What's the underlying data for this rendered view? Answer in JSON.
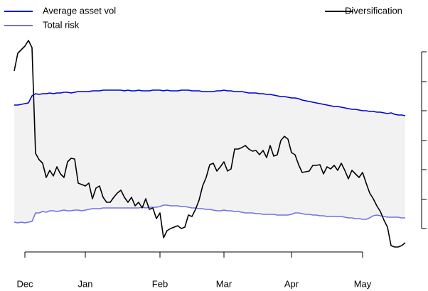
{
  "chart_data": {
    "type": "line",
    "categories": [
      null,
      null,
      null,
      "Dec",
      null,
      null,
      null,
      null,
      null,
      null,
      null,
      null,
      null,
      null,
      null,
      null,
      null,
      null,
      null,
      null,
      "Jan",
      null,
      null,
      null,
      null,
      null,
      null,
      null,
      null,
      null,
      null,
      null,
      null,
      null,
      null,
      null,
      null,
      null,
      null,
      null,
      null,
      "Feb",
      null,
      null,
      null,
      null,
      null,
      null,
      null,
      null,
      null,
      null,
      null,
      null,
      null,
      null,
      null,
      null,
      null,
      "Mar",
      null,
      null,
      null,
      null,
      null,
      null,
      null,
      null,
      null,
      null,
      null,
      null,
      null,
      null,
      null,
      null,
      null,
      null,
      "Apr",
      null,
      null,
      null,
      null,
      null,
      null,
      null,
      null,
      null,
      null,
      null,
      null,
      null,
      null,
      null,
      null,
      null,
      null,
      null,
      "May",
      null,
      null,
      null,
      null,
      null,
      null,
      null,
      null,
      null,
      null,
      null,
      null
    ],
    "series": [
      {
        "name": "Average asset vol",
        "color": "#0000dd",
        "values": [
          202,
          202,
          203,
          204,
          205,
          215,
          218,
          217,
          218,
          218,
          219,
          218,
          219,
          219,
          220,
          220,
          219,
          220,
          221,
          221,
          221,
          221,
          222,
          222,
          222,
          223,
          223,
          223,
          223,
          223,
          223,
          222,
          223,
          222,
          222,
          223,
          222,
          222,
          222,
          223,
          223,
          223,
          222,
          223,
          222,
          222,
          222,
          223,
          223,
          223,
          222,
          222,
          222,
          221,
          221,
          221,
          221,
          222,
          222,
          223,
          222,
          222,
          221,
          221,
          221,
          220,
          219,
          219,
          219,
          218,
          218,
          217,
          217,
          216,
          215,
          214,
          214,
          213,
          212,
          212,
          211,
          209,
          208,
          207,
          206,
          205,
          204,
          203,
          202,
          201,
          200,
          200,
          199,
          198,
          197,
          196,
          196,
          195,
          194,
          194,
          193,
          193,
          192,
          192,
          191,
          190,
          191,
          189,
          188,
          188,
          187
        ]
      },
      {
        "name": "Total risk",
        "color": "#7370e6",
        "values": [
          37,
          36,
          37,
          36,
          37,
          38,
          50,
          50,
          52,
          51,
          53,
          53,
          52,
          53,
          54,
          53,
          53,
          54,
          54,
          53,
          54,
          55,
          56,
          56,
          56,
          57,
          57,
          57,
          57,
          57,
          57,
          57,
          57,
          57,
          57,
          57,
          58,
          57,
          58,
          58,
          58,
          59,
          61,
          61,
          60,
          60,
          60,
          59,
          59,
          58,
          57,
          57,
          56,
          56,
          55,
          55,
          54,
          53,
          53,
          54,
          53,
          53,
          52,
          52,
          51,
          50,
          50,
          50,
          49,
          49,
          48,
          48,
          48,
          48,
          47,
          47,
          47,
          47,
          48,
          50,
          50,
          49,
          48,
          48,
          47,
          47,
          46,
          46,
          45,
          45,
          45,
          45,
          45,
          44,
          43,
          43,
          42,
          42,
          41,
          41,
          43,
          46,
          47,
          46,
          45,
          44,
          44,
          44,
          44,
          43,
          43
        ]
      },
      {
        "name": "Diversification",
        "color": "#000000",
        "values": [
          250,
          275,
          280,
          285,
          293,
          283,
          134,
          125,
          120,
          100,
          110,
          102,
          115,
          105,
          100,
          122,
          127,
          126,
          92,
          90,
          88,
          92,
          70,
          85,
          88,
          72,
          65,
          65,
          72,
          78,
          82,
          72,
          65,
          72,
          60,
          65,
          57,
          70,
          55,
          57,
          42,
          50,
          15,
          25,
          28,
          30,
          32,
          28,
          30,
          47,
          45,
          55,
          68,
          88,
          100,
          118,
          120,
          109,
          115,
          122,
          109,
          112,
          140,
          140,
          142,
          145,
          140,
          137,
          138,
          132,
          138,
          128,
          145,
          130,
          132,
          152,
          158,
          154,
          135,
          132,
          118,
          107,
          108,
          109,
          117,
          117,
          118,
          105,
          115,
          112,
          117,
          110,
          120,
          110,
          98,
          110,
          105,
          100,
          107,
          92,
          78,
          70,
          60,
          52,
          40,
          30,
          4,
          2,
          2,
          4,
          8
        ]
      }
    ],
    "ylim": [
      0,
      295
    ],
    "yticks": [
      28,
      69,
      111,
      152,
      194,
      235,
      277
    ],
    "y_axis_side": "right",
    "fill_between": "#f2f2f2",
    "grid": false
  }
}
